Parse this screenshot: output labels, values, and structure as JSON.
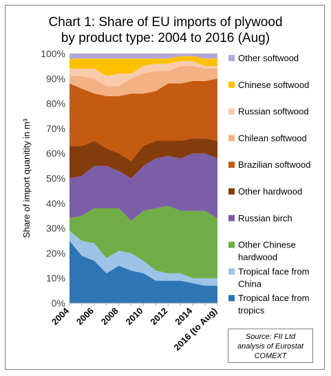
{
  "chart_data": {
    "type": "area",
    "stacked": true,
    "percent": true,
    "title": "Chart 1: Share of EU imports of plywood\nby product type: 2004 to 2016 (Aug)",
    "ylabel": "Share of import quanitity in m³",
    "ylim": [
      0,
      100
    ],
    "yticks": [
      "0%",
      "10%",
      "20%",
      "30%",
      "40%",
      "50%",
      "60%",
      "70%",
      "80%",
      "90%",
      "100%"
    ],
    "x": [
      "2004",
      "2005",
      "2006",
      "2007",
      "2008",
      "2009",
      "2010",
      "2011",
      "2012",
      "2013",
      "2014",
      "2015",
      "2016 (to Aug)"
    ],
    "x_tick_labels": [
      "2004",
      "2006",
      "2008",
      "2010",
      "2012",
      "2014",
      "2016 (to Aug)"
    ],
    "legend_position": "right",
    "series": [
      {
        "name": "Tropical face from tropics",
        "color": "#2e75b6",
        "values": [
          25,
          19,
          17,
          12,
          15,
          13,
          12,
          9,
          9,
          9,
          8,
          7,
          7
        ]
      },
      {
        "name": "Tropical face from China",
        "color": "#9dc3e6",
        "values": [
          4,
          6,
          7,
          6,
          6,
          7,
          5,
          4,
          3,
          3,
          2,
          3,
          3
        ]
      },
      {
        "name": "Other Chinese hardwood",
        "color": "#70ad47",
        "values": [
          5,
          10,
          14,
          20,
          17,
          13,
          20,
          25,
          27,
          25,
          27,
          27,
          24
        ]
      },
      {
        "name": "Russian birch",
        "color": "#7b5ea7",
        "values": [
          16,
          16,
          17,
          17,
          15,
          17,
          18,
          20,
          20,
          21,
          23,
          23,
          24
        ]
      },
      {
        "name": "Other hardwood",
        "color": "#843c0c",
        "values": [
          13,
          12,
          10,
          7,
          7,
          7,
          8,
          7,
          6,
          7,
          6,
          6,
          7
        ]
      },
      {
        "name": "Brazilian softwood",
        "color": "#c55a11",
        "values": [
          25,
          23,
          19,
          21,
          23,
          27,
          21,
          20,
          23,
          23,
          23,
          23,
          25
        ]
      },
      {
        "name": "Chilean softwood",
        "color": "#f4b183",
        "values": [
          3,
          5,
          6,
          4,
          4,
          6,
          8,
          8,
          5,
          7,
          6,
          5,
          4
        ]
      },
      {
        "name": "Russian softwood",
        "color": "#f8cbad",
        "values": [
          3,
          3,
          4,
          4,
          5,
          2,
          3,
          3,
          3,
          2,
          2,
          1,
          1
        ]
      },
      {
        "name": "Chinese softwood",
        "color": "#ffc000",
        "values": [
          4,
          4,
          4,
          7,
          6,
          6,
          3,
          2,
          2,
          2,
          2,
          3,
          3
        ]
      },
      {
        "name": "Other softwood",
        "color": "#b4a7d6",
        "values": [
          2,
          2,
          2,
          2,
          2,
          2,
          2,
          2,
          2,
          1,
          1,
          2,
          2
        ]
      }
    ],
    "legend_order": [
      "Other softwood",
      "Chinese softwood",
      "Russian softwood",
      "Chilean softwood",
      "Brazilian softwood",
      "Other hardwood",
      "Russian birch",
      "Other Chinese\nhardwood",
      "Tropical face from\nChina",
      "Tropical face from\ntropics"
    ],
    "source": "Source: FII Ltd\nanalysis of Eurostat\nCOMEXT"
  }
}
